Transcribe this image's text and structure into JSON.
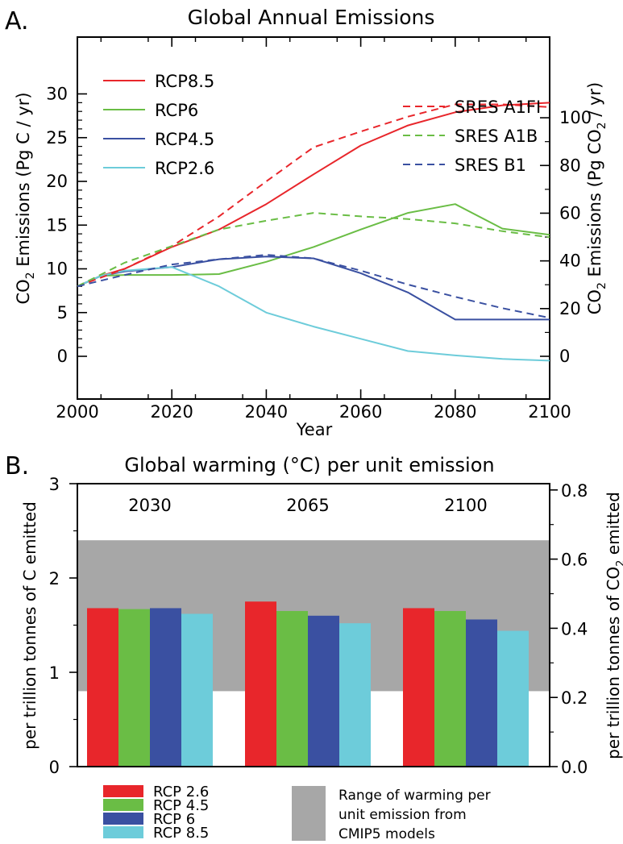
{
  "panel_a": {
    "letter": "A.",
    "title": "Global Annual Emissions",
    "xlabel": "Year",
    "ylabel_left_pre": "CO",
    "ylabel_left_sub": "2",
    "ylabel_left_post": " Emissions (Pg C / yr)",
    "ylabel_right_pre": "CO",
    "ylabel_right_sub": "2",
    "ylabel_right_post": " Emissions (Pg CO",
    "ylabel_right_sub2": "2",
    "ylabel_right_end": " / yr)"
  },
  "panel_b": {
    "letter": "B.",
    "title": "Global warming (°C) per unit emission",
    "ylabel_left": "per trillion tonnes of C emitted",
    "ylabel_right_pre": "per trillion tonnes of CO",
    "ylabel_right_sub": "2",
    "ylabel_right_post": " emitted",
    "range_legend_lines": [
      "Range of warming per",
      "unit emission from",
      "CMIP5 models"
    ]
  },
  "colors": {
    "red": "#e8262b",
    "green": "#6abd45",
    "blue": "#3a50a1",
    "cyan": "#6dccda",
    "range_gray": "#a7a7a7"
  },
  "chart_data": [
    {
      "type": "line",
      "title": "Global Annual Emissions",
      "xlabel": "Year",
      "ylabel": "CO2 Emissions (Pg C / yr)",
      "ylabel_right": "CO2 Emissions (Pg CO2 / yr)",
      "xlim": [
        2000,
        2100
      ],
      "ylim": [
        -1,
        30
      ],
      "x_ticks": [
        2000,
        2020,
        2040,
        2060,
        2080,
        2100
      ],
      "y_ticks": [
        0,
        5,
        10,
        15,
        20,
        25,
        30
      ],
      "y_ticks_right": [
        0,
        20,
        40,
        60,
        80,
        100
      ],
      "legend_placement": "upper-left (RCP) and upper-right (SRES)",
      "series": [
        {
          "name": "RCP8.5",
          "style": "solid",
          "color": "#e8262b",
          "x": [
            2000,
            2005,
            2010,
            2020,
            2030,
            2040,
            2050,
            2060,
            2070,
            2080,
            2090,
            2100
          ],
          "y": [
            8.0,
            9.2,
            10.0,
            12.5,
            14.5,
            17.4,
            20.8,
            24.1,
            26.4,
            27.9,
            28.7,
            29.0
          ]
        },
        {
          "name": "RCP6",
          "style": "solid",
          "color": "#6abd45",
          "x": [
            2000,
            2005,
            2010,
            2020,
            2030,
            2040,
            2050,
            2060,
            2070,
            2080,
            2090,
            2100
          ],
          "y": [
            8.0,
            9.2,
            9.3,
            9.3,
            9.4,
            10.8,
            12.5,
            14.5,
            16.4,
            17.4,
            14.6,
            13.9
          ]
        },
        {
          "name": "RCP4.5",
          "style": "solid",
          "color": "#3a50a1",
          "x": [
            2000,
            2005,
            2010,
            2020,
            2030,
            2040,
            2050,
            2060,
            2070,
            2080,
            2090,
            2100
          ],
          "y": [
            8.0,
            9.2,
            9.7,
            10.2,
            11.1,
            11.4,
            11.2,
            9.5,
            7.3,
            4.2,
            4.2,
            4.2
          ]
        },
        {
          "name": "RCP2.6",
          "style": "solid",
          "color": "#6dccda",
          "x": [
            2000,
            2005,
            2010,
            2020,
            2030,
            2040,
            2050,
            2060,
            2070,
            2080,
            2090,
            2100
          ],
          "y": [
            8.0,
            9.2,
            9.8,
            10.2,
            8.0,
            5.0,
            3.4,
            2.0,
            0.6,
            0.1,
            -0.3,
            -0.5
          ]
        },
        {
          "name": "SRES A1FI",
          "style": "dashed",
          "color": "#e8262b",
          "x": [
            2000,
            2010,
            2020,
            2030,
            2040,
            2050,
            2060,
            2070,
            2080,
            2090,
            2100
          ],
          "y": [
            8.0,
            10.0,
            12.6,
            16.0,
            20.0,
            23.9,
            25.7,
            27.4,
            28.8,
            28.8,
            28.5
          ]
        },
        {
          "name": "SRES A1B",
          "style": "dashed",
          "color": "#6abd45",
          "x": [
            2000,
            2010,
            2020,
            2030,
            2040,
            2050,
            2060,
            2070,
            2080,
            2090,
            2100
          ],
          "y": [
            8.0,
            10.7,
            12.6,
            14.5,
            15.5,
            16.4,
            16.0,
            15.7,
            15.2,
            14.3,
            13.6
          ]
        },
        {
          "name": "SRES B1",
          "style": "dashed",
          "color": "#3a50a1",
          "x": [
            2000,
            2010,
            2020,
            2030,
            2040,
            2050,
            2060,
            2070,
            2080,
            2090,
            2100
          ],
          "y": [
            8.0,
            9.3,
            10.5,
            11.1,
            11.6,
            11.2,
            9.8,
            8.2,
            6.8,
            5.5,
            4.4
          ]
        }
      ]
    },
    {
      "type": "bar",
      "title": "Global warming (°C) per unit emission",
      "ylabel": "per trillion tonnes of C emitted",
      "ylabel_right": "per trillion tonnes of CO2 emitted",
      "ylim": [
        0,
        3
      ],
      "y_ticks": [
        0,
        1,
        2,
        3
      ],
      "y_ticks_right": [
        "0.0",
        "0.2",
        "0.4",
        "0.6",
        "0.8"
      ],
      "range": [
        0.8,
        2.4
      ],
      "range_label": "Range of warming per unit emission from CMIP5 models",
      "categories": [
        "2030",
        "2065",
        "2100"
      ],
      "legend_placement": "bottom",
      "series": [
        {
          "name": "RCP 2.6",
          "color": "#e8262b",
          "values": [
            1.68,
            1.75,
            1.68
          ]
        },
        {
          "name": "RCP 4.5",
          "color": "#6abd45",
          "values": [
            1.67,
            1.65,
            1.65
          ]
        },
        {
          "name": "RCP 6",
          "color": "#3a50a1",
          "values": [
            1.68,
            1.6,
            1.56
          ]
        },
        {
          "name": "RCP 8.5",
          "color": "#6dccda",
          "values": [
            1.62,
            1.52,
            1.44
          ]
        }
      ]
    }
  ]
}
